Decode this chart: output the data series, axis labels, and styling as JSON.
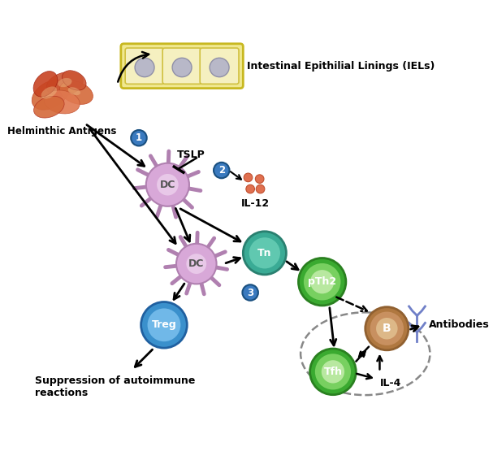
{
  "background_color": "#ffffff",
  "iel_label": "Intestinal Epithilial Linings (IELs)",
  "helminthic_label": "Helminthic Antigens",
  "tslp_label": "TSLP",
  "il12_label": "IL-12",
  "il4_label": "IL-4",
  "antibodies_label": "Antibodies",
  "suppression_label": "Suppression of autoimmune\nreactions",
  "dc_color": "#d8a8d8",
  "dc_spike_color": "#c090c0",
  "tn_color_outer": "#5abfaa",
  "tn_color_inner": "#7dd8c8",
  "treg_color_outer": "#4a9fd4",
  "treg_color_inner": "#80c8e8",
  "pth2_outer": "#4ab840",
  "pth2_inner": "#90d870",
  "pth2_core": "#c8e8b0",
  "b_outer": "#c09060",
  "b_inner": "#d8b888",
  "b_core": "#e8d0b0",
  "tfh_outer": "#4ab840",
  "tfh_inner": "#90d870",
  "tfh_core": "#c8e8b0",
  "num_circle_color": "#3a7abf",
  "num_circle_edge": "#1a5080"
}
